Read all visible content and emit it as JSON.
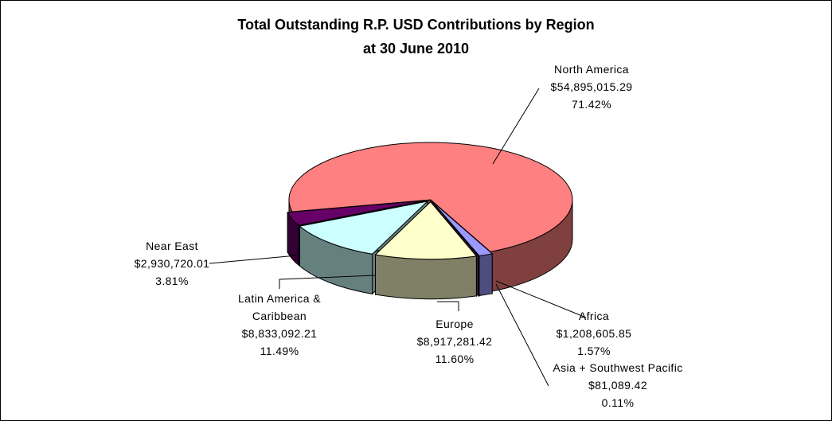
{
  "chart_data": {
    "type": "pie3d",
    "title": "Total Outstanding R.P. USD Contributions by Region",
    "subtitle": "at 30 June 2010",
    "categories": [
      "North America",
      "Africa",
      "Asia + Southwest Pacific",
      "Europe",
      "Latin America & Caribbean",
      "Near East"
    ],
    "values": [
      54895015.29,
      1208605.85,
      81089.42,
      8917281.42,
      8833092.21,
      2930720.01
    ],
    "value_labels": [
      "$54,895,015.29",
      "$1,208,605.85",
      "$81,089.42",
      "$8,917,281.42",
      "$8,833,092.21",
      "$2,930,720.01"
    ],
    "percent_labels": [
      "71.42%",
      "1.57%",
      "0.11%",
      "11.60%",
      "11.49%",
      "3.81%"
    ],
    "colors": [
      "#ff8080",
      "#9999ff",
      "#993366",
      "#ffffcc",
      "#ccffff",
      "#660066"
    ]
  }
}
